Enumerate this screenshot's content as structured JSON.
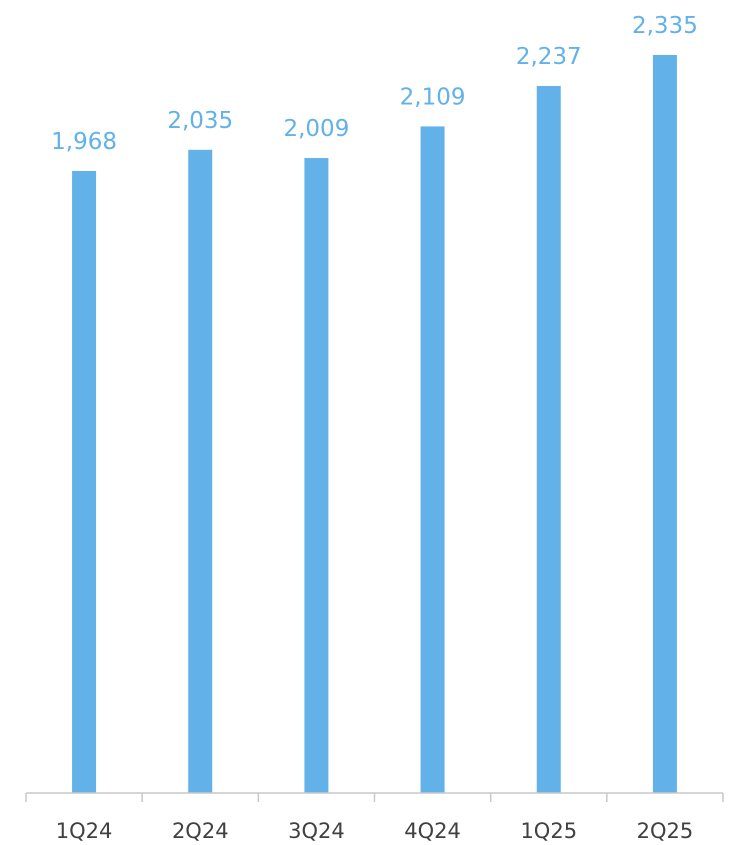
{
  "chart_data": {
    "type": "bar",
    "categories": [
      "1Q24",
      "2Q24",
      "3Q24",
      "4Q24",
      "1Q25",
      "2Q25"
    ],
    "values": [
      1968,
      2035,
      2009,
      2109,
      2237,
      2335
    ],
    "value_labels": [
      "1,968",
      "2,035",
      "2,009",
      "2,109",
      "2,237",
      "2,335"
    ],
    "title": "",
    "xlabel": "",
    "ylabel": "",
    "ylim": [
      0,
      2400
    ],
    "grid": false,
    "legend": "none",
    "colors": {
      "bar": "#62b1e8",
      "label": "#62b1e8",
      "axis": "#c8c8c8",
      "tick_text": "#404040"
    }
  }
}
